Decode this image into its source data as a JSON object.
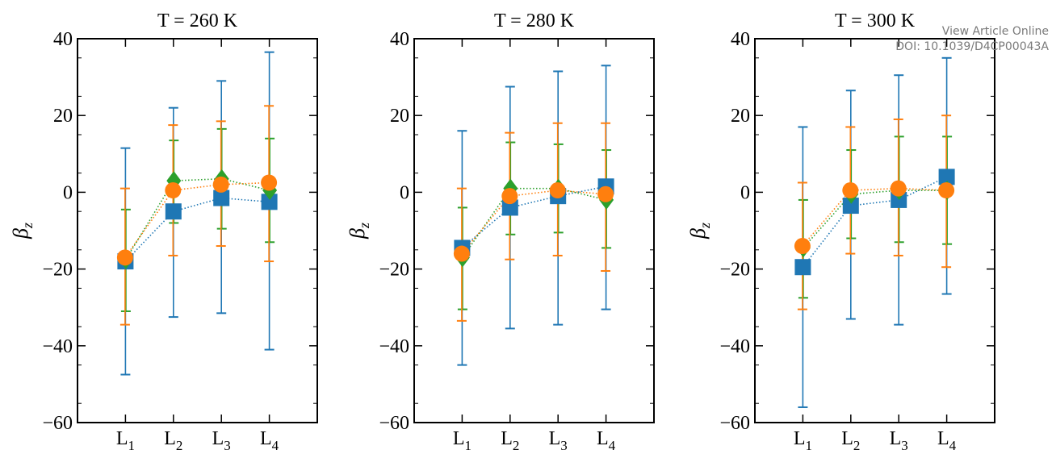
{
  "watermark": {
    "line1": "View Article Online",
    "line2": "DOI: 10.1039/D4CP00043A"
  },
  "colors": {
    "blue": "#1f77b4",
    "orange": "#ff7f0e",
    "green": "#2ca02c"
  },
  "chart_data": [
    {
      "type": "line",
      "title": "T = 260 K",
      "ylabel": "βz",
      "categories": [
        "L1",
        "L2",
        "L3",
        "L4"
      ],
      "ylim": [
        -60,
        40
      ],
      "yticks": [
        -60,
        -40,
        -20,
        0,
        20,
        40
      ],
      "series": [
        {
          "marker": "square",
          "color": "#1f77b4",
          "values": [
            -18.0,
            -5.0,
            -1.5,
            -2.5
          ],
          "err_low": [
            -47.5,
            -32.5,
            -31.5,
            -41.0
          ],
          "err_high": [
            11.5,
            22.0,
            29.0,
            36.5
          ]
        },
        {
          "marker": "circle",
          "color": "#ff7f0e",
          "values": [
            -17.0,
            0.5,
            2.0,
            2.5
          ],
          "err_low": [
            -34.5,
            -16.5,
            -14.0,
            -18.0
          ],
          "err_high": [
            1.0,
            17.5,
            18.5,
            22.5
          ]
        },
        {
          "marker": "diamond",
          "color": "#2ca02c",
          "values": [
            -17.5,
            3.0,
            3.5,
            0.5
          ],
          "err_low": [
            -31.0,
            -8.0,
            -9.5,
            -13.0
          ],
          "err_high": [
            -4.5,
            13.5,
            16.5,
            14.0
          ]
        }
      ]
    },
    {
      "type": "line",
      "title": "T = 280 K",
      "ylabel": "βz",
      "categories": [
        "L1",
        "L2",
        "L3",
        "L4"
      ],
      "ylim": [
        -60,
        40
      ],
      "yticks": [
        -60,
        -40,
        -20,
        0,
        20,
        40
      ],
      "series": [
        {
          "marker": "square",
          "color": "#1f77b4",
          "values": [
            -14.5,
            -4.0,
            -1.0,
            1.5
          ],
          "err_low": [
            -45.0,
            -35.5,
            -34.5,
            -30.5
          ],
          "err_high": [
            16.0,
            27.5,
            31.5,
            33.0
          ]
        },
        {
          "marker": "circle",
          "color": "#ff7f0e",
          "values": [
            -16.0,
            -1.0,
            0.5,
            -0.5
          ],
          "err_low": [
            -33.5,
            -17.5,
            -16.5,
            -20.5
          ],
          "err_high": [
            1.0,
            15.5,
            18.0,
            18.0
          ]
        },
        {
          "marker": "diamond",
          "color": "#2ca02c",
          "values": [
            -17.0,
            1.0,
            1.0,
            -2.0
          ],
          "err_low": [
            -30.5,
            -11.0,
            -10.5,
            -14.5
          ],
          "err_high": [
            -4.0,
            13.0,
            12.5,
            11.0
          ]
        }
      ]
    },
    {
      "type": "line",
      "title": "T = 300 K",
      "ylabel": "βz",
      "categories": [
        "L1",
        "L2",
        "L3",
        "L4"
      ],
      "ylim": [
        -60,
        40
      ],
      "yticks": [
        -60,
        -40,
        -20,
        0,
        20,
        40
      ],
      "series": [
        {
          "marker": "square",
          "color": "#1f77b4",
          "values": [
            -19.5,
            -3.5,
            -2.0,
            4.0
          ],
          "err_low": [
            -56.0,
            -33.0,
            -34.5,
            -26.5
          ],
          "err_high": [
            17.0,
            26.5,
            30.5,
            35.0
          ]
        },
        {
          "marker": "circle",
          "color": "#ff7f0e",
          "values": [
            -14.0,
            0.5,
            1.0,
            0.5
          ],
          "err_low": [
            -30.5,
            -16.0,
            -16.5,
            -19.5
          ],
          "err_high": [
            2.5,
            17.0,
            19.0,
            20.0
          ]
        },
        {
          "marker": "diamond",
          "color": "#2ca02c",
          "values": [
            -14.5,
            -0.5,
            0.5,
            0.5
          ],
          "err_low": [
            -27.5,
            -12.0,
            -13.0,
            -13.5
          ],
          "err_high": [
            -2.0,
            11.0,
            14.5,
            14.5
          ]
        }
      ]
    }
  ]
}
